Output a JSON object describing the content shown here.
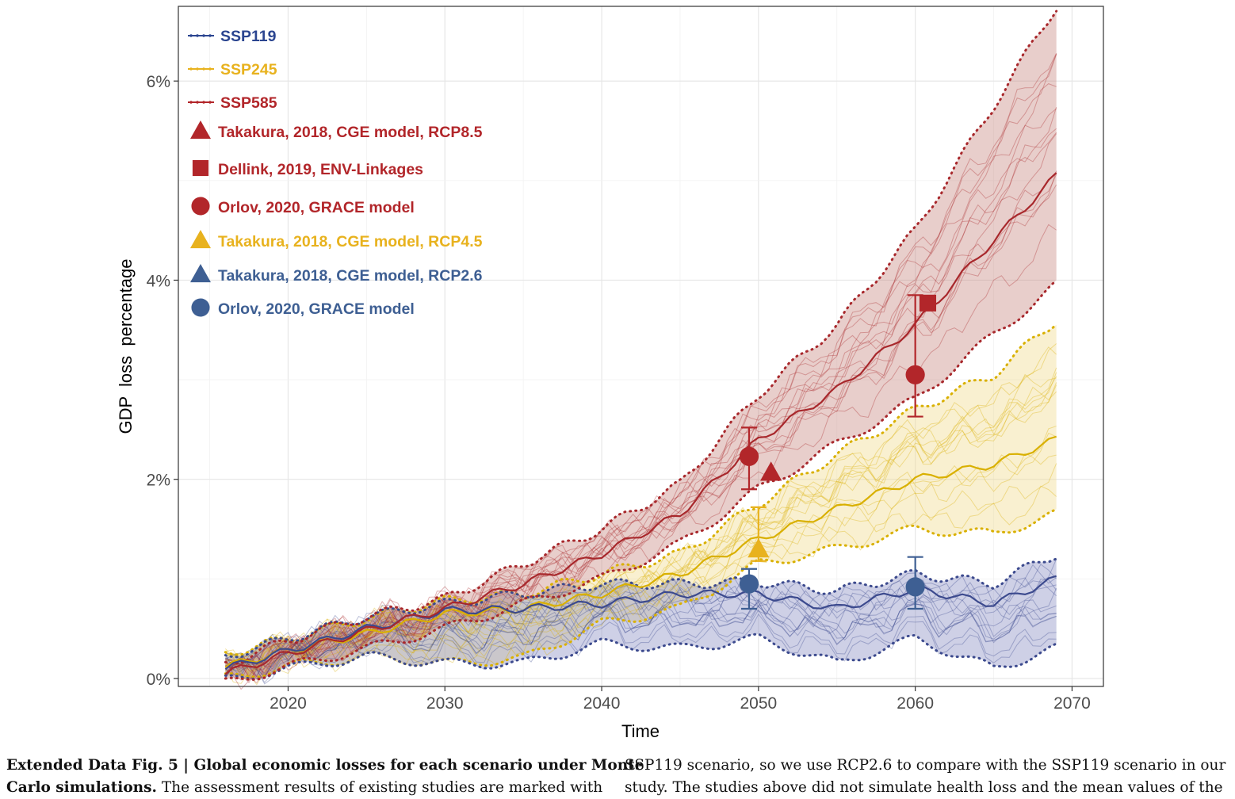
{
  "chart_data": {
    "type": "line",
    "xlabel": "Time",
    "ylabel": "GDP  loss  percentage",
    "xlim": [
      2013,
      2072
    ],
    "ylim": [
      -0.08,
      6.75
    ],
    "x_ticks": [
      2020,
      2030,
      2040,
      2050,
      2060,
      2070
    ],
    "x_tick_labels": [
      "2020",
      "2030",
      "2040",
      "2050",
      "2060",
      "2070"
    ],
    "y_ticks": [
      0,
      2,
      4,
      6
    ],
    "y_tick_labels": [
      "0%",
      "2%",
      "4%",
      "6%"
    ],
    "grid": true,
    "legend_position": "top-left",
    "series": [
      {
        "name": "SSP119",
        "color": "#3c4a8e",
        "band_color": "#8b90c4",
        "x": [
          2016,
          2020,
          2025,
          2030,
          2035,
          2040,
          2045,
          2050,
          2055,
          2060,
          2065,
          2069
        ],
        "mean": [
          0.1,
          0.28,
          0.5,
          0.68,
          0.7,
          0.75,
          0.85,
          0.85,
          0.7,
          0.9,
          0.75,
          1.0
        ],
        "upper": [
          0.22,
          0.4,
          0.62,
          0.75,
          0.85,
          0.95,
          0.95,
          0.97,
          0.88,
          1.05,
          0.95,
          1.25
        ],
        "lower": [
          -0.02,
          0.1,
          0.22,
          0.15,
          0.15,
          0.35,
          0.3,
          0.4,
          0.15,
          0.4,
          0.1,
          0.3
        ]
      },
      {
        "name": "SSP245",
        "color": "#d9b000",
        "band_color": "#f1dc8e",
        "x": [
          2016,
          2020,
          2025,
          2030,
          2035,
          2040,
          2045,
          2050,
          2055,
          2060,
          2065,
          2069
        ],
        "mean": [
          0.12,
          0.28,
          0.45,
          0.65,
          0.7,
          0.85,
          1.05,
          1.4,
          1.7,
          2.0,
          2.15,
          2.4
        ],
        "upper": [
          0.25,
          0.4,
          0.6,
          0.78,
          0.85,
          1.05,
          1.25,
          1.75,
          2.25,
          2.7,
          3.05,
          3.6
        ],
        "lower": [
          0.0,
          0.12,
          0.22,
          0.15,
          0.2,
          0.55,
          0.7,
          1.15,
          1.3,
          1.5,
          1.45,
          1.65
        ]
      },
      {
        "name": "SSP585",
        "color": "#a8282c",
        "band_color": "#c98a82",
        "x": [
          2016,
          2020,
          2025,
          2030,
          2035,
          2040,
          2045,
          2050,
          2055,
          2060,
          2065,
          2069
        ],
        "mean": [
          0.05,
          0.25,
          0.48,
          0.7,
          0.95,
          1.25,
          1.65,
          2.4,
          2.9,
          3.55,
          4.4,
          5.05
        ],
        "upper": [
          0.15,
          0.38,
          0.62,
          0.8,
          1.15,
          1.5,
          1.95,
          2.85,
          3.55,
          4.5,
          5.75,
          6.75
        ],
        "lower": [
          -0.05,
          0.12,
          0.3,
          0.5,
          0.75,
          1.0,
          1.35,
          1.9,
          2.35,
          2.8,
          3.45,
          3.95
        ]
      }
    ],
    "studies": [
      {
        "label": "Takakura, 2018, CGE model, RCP8.5",
        "marker": "triangle",
        "color": "#b2262a",
        "x": 2050.8,
        "y": 2.07
      },
      {
        "label": "Dellink, 2019, ENV-Linkages",
        "marker": "square",
        "color": "#b2262a",
        "x": 2060.8,
        "y": 3.77
      },
      {
        "label": "Orlov, 2020, GRACE model",
        "marker": "circle",
        "color": "#b2262a",
        "x": [
          2049.4,
          2060.0
        ],
        "y": [
          2.23,
          3.05
        ],
        "err_low": [
          1.9,
          2.63
        ],
        "err_high": [
          2.52,
          3.85
        ]
      },
      {
        "label": "Takakura, 2018, CGE model, RCP4.5",
        "marker": "triangle",
        "color": "#e8b21e",
        "x": 2050.0,
        "y": 1.3,
        "err_low": 1.18,
        "err_high": 1.72
      },
      {
        "label": "Takakura, 2018, CGE model, RCP2.6",
        "marker": "triangle",
        "color": "#3e5f93",
        "x": null,
        "y": null
      },
      {
        "label": "Orlov, 2020, GRACE model",
        "marker": "circle",
        "color": "#3e5f93",
        "x": [
          2049.4,
          2060.0
        ],
        "y": [
          0.95,
          0.92
        ],
        "err_low": [
          0.7,
          0.7
        ],
        "err_high": [
          1.1,
          1.22
        ]
      }
    ],
    "legend": [
      {
        "label": "SSP119",
        "kind": "line",
        "color": "#2b4590"
      },
      {
        "label": "SSP245",
        "kind": "line",
        "color": "#e8b21e"
      },
      {
        "label": "SSP585",
        "kind": "line",
        "color": "#b2262a"
      },
      {
        "label": "Takakura, 2018, CGE model, RCP8.5",
        "kind": "triangle",
        "color": "#b2262a"
      },
      {
        "label": "Dellink, 2019, ENV-Linkages",
        "kind": "square",
        "color": "#b2262a"
      },
      {
        "label": "Orlov, 2020, GRACE model",
        "kind": "circle",
        "color": "#b2262a"
      },
      {
        "label": "Takakura, 2018, CGE model, RCP4.5",
        "kind": "triangle",
        "color": "#e8b21e"
      },
      {
        "label": "Takakura, 2018, CGE model, RCP2.6",
        "kind": "triangle",
        "color": "#3e5f93"
      },
      {
        "label": "Orlov, 2020, GRACE model",
        "kind": "circle",
        "color": "#3e5f93"
      }
    ]
  },
  "caption": {
    "left_line1_bold": "Extended Data Fig. 5 | Global economic losses for each scenario under Monte",
    "left_line2_bold": "Carlo simulations.",
    "left_line2_rest": " The assessment results of existing studies are marked with",
    "right_line1": "SSP119 scenario, so we use RCP2.6 to compare with the SSP119 scenario in our",
    "right_line2": "study. The studies above did not simulate health loss and the mean values of the"
  }
}
